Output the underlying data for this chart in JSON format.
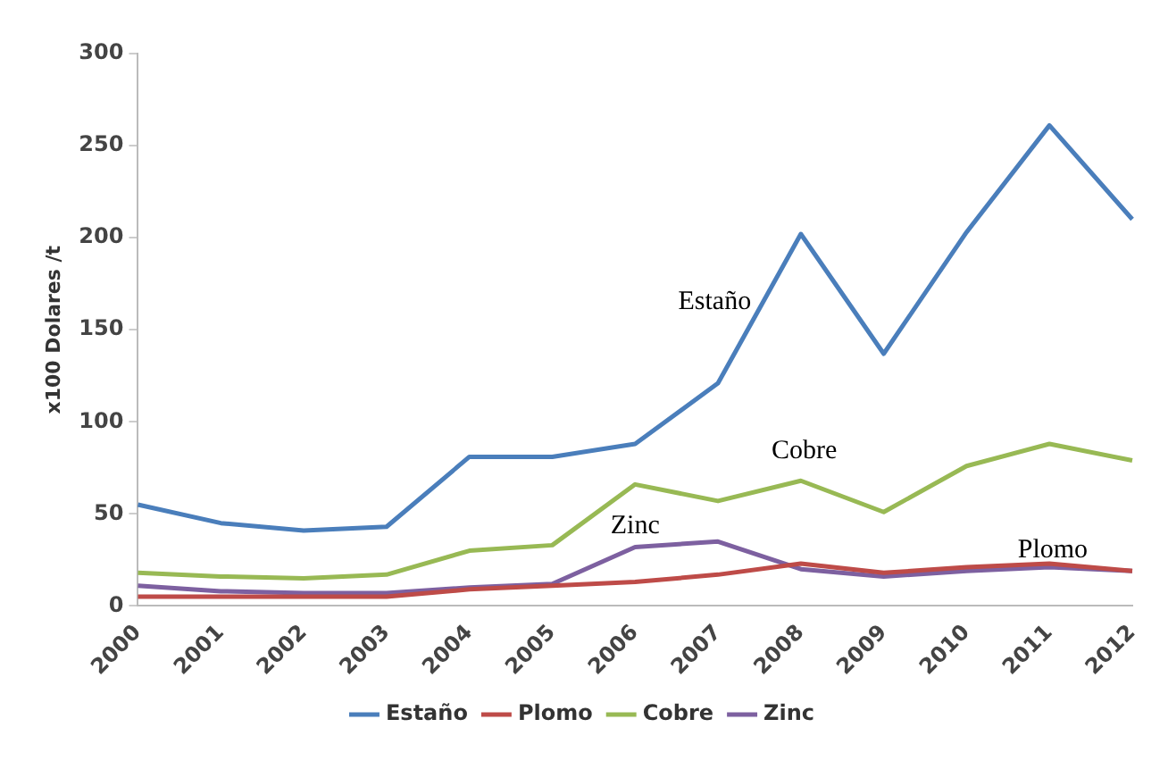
{
  "chart_data": {
    "type": "line",
    "ylabel": "x100 Dolares /t",
    "categories": [
      "2000",
      "2001",
      "2002",
      "2003",
      "2004",
      "2005",
      "2006",
      "2007",
      "2008",
      "2009",
      "2010",
      "2011",
      "2012"
    ],
    "series": [
      {
        "name": "Estaño",
        "color": "#4a7ebb",
        "values": [
          55,
          45,
          41,
          43,
          81,
          81,
          88,
          121,
          202,
          137,
          203,
          261,
          210
        ]
      },
      {
        "name": "Plomo",
        "color": "#be4b48",
        "values": [
          5,
          5,
          5,
          5,
          9,
          11,
          13,
          17,
          23,
          18,
          21,
          23,
          19
        ]
      },
      {
        "name": "Cobre",
        "color": "#98b954",
        "values": [
          18,
          16,
          15,
          17,
          30,
          33,
          66,
          57,
          68,
          51,
          76,
          88,
          79
        ]
      },
      {
        "name": "Zinc",
        "color": "#7d60a0",
        "values": [
          11,
          8,
          7,
          7,
          10,
          12,
          32,
          35,
          20,
          16,
          19,
          21,
          19
        ]
      }
    ],
    "ylim": [
      0,
      300
    ],
    "yticks": [
      0,
      50,
      100,
      150,
      200,
      250,
      300
    ],
    "grid": false,
    "legend": "bottom",
    "marker": "none",
    "line_style": "solid",
    "annotations": [
      "Estaño",
      "Cobre",
      "Zinc",
      "Plomo"
    ]
  }
}
